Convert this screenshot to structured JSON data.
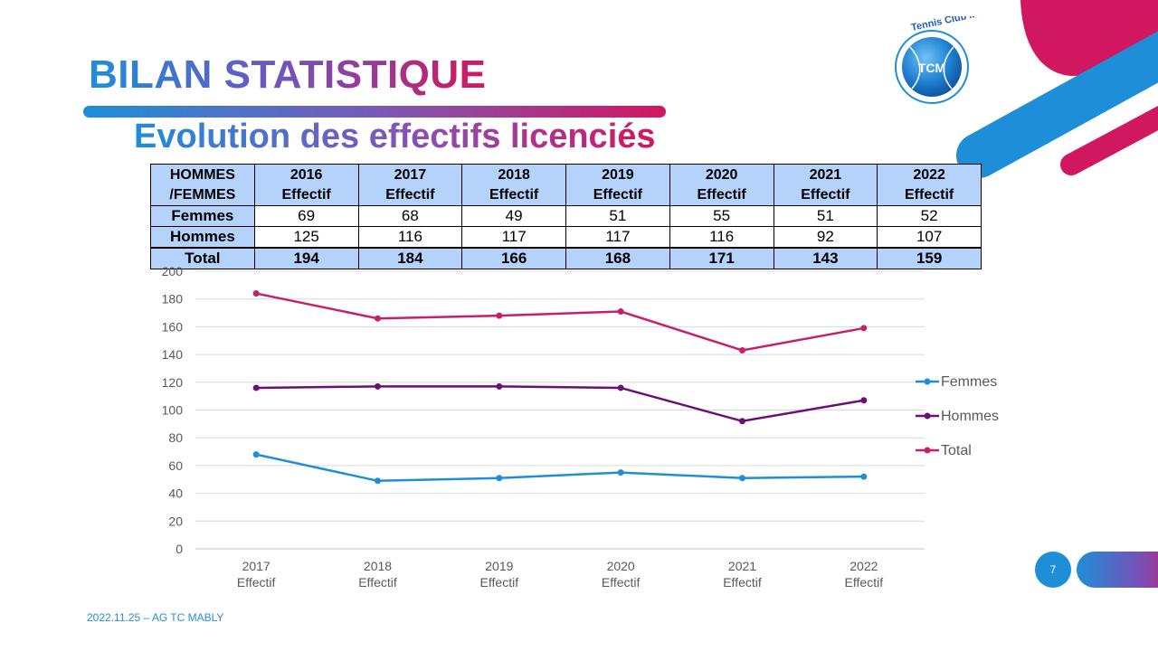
{
  "header": {
    "title": "BILAN STATISTIQUE",
    "subtitle": "Evolution des effectifs licenciés"
  },
  "logo": {
    "text": "Tennis Club MABLY",
    "badge": "TCM"
  },
  "table": {
    "corner_line1": "HOMMES",
    "corner_line2": "/FEMMES",
    "columns": [
      {
        "year": "2016",
        "label": "Effectif"
      },
      {
        "year": "2017",
        "label": "Effectif"
      },
      {
        "year": "2018",
        "label": "Effectif"
      },
      {
        "year": "2019",
        "label": "Effectif"
      },
      {
        "year": "2020",
        "label": "Effectif"
      },
      {
        "year": "2021",
        "label": "Effectif"
      },
      {
        "year": "2022",
        "label": "Effectif"
      }
    ],
    "rows": [
      {
        "label": "Femmes",
        "values": [
          "69",
          "68",
          "49",
          "51",
          "55",
          "51",
          "52"
        ]
      },
      {
        "label": "Hommes",
        "values": [
          "125",
          "116",
          "117",
          "117",
          "116",
          "92",
          "107"
        ]
      },
      {
        "label": "Total",
        "values": [
          "194",
          "184",
          "166",
          "168",
          "171",
          "143",
          "159"
        ]
      }
    ]
  },
  "chart_data": {
    "type": "line",
    "categories": [
      "2017\nEffectif",
      "2018\nEffectif",
      "2019\nEffectif",
      "2020\nEffectif",
      "2021\nEffectif",
      "2022\nEffectif"
    ],
    "series": [
      {
        "name": "Femmes",
        "values": [
          68,
          49,
          51,
          55,
          51,
          52
        ],
        "color": "#1e8ed8"
      },
      {
        "name": "Hommes",
        "values": [
          116,
          117,
          117,
          116,
          92,
          107
        ],
        "color": "#6b0f78"
      },
      {
        "name": "Total",
        "values": [
          184,
          166,
          168,
          171,
          143,
          159
        ],
        "color": "#c81f6b"
      }
    ],
    "ylim": [
      0,
      200
    ],
    "yticks": [
      0,
      20,
      40,
      60,
      80,
      100,
      120,
      140,
      160,
      180,
      200
    ],
    "grid": true,
    "legend": "right"
  },
  "footer": {
    "text": "2022.11.25  – AG TC  MABLY",
    "page_number": "7"
  },
  "colors": {
    "blue": "#1e8ed8",
    "magenta": "#d1175f",
    "purple": "#6b0f78",
    "table_header": "#b4d2fa"
  }
}
